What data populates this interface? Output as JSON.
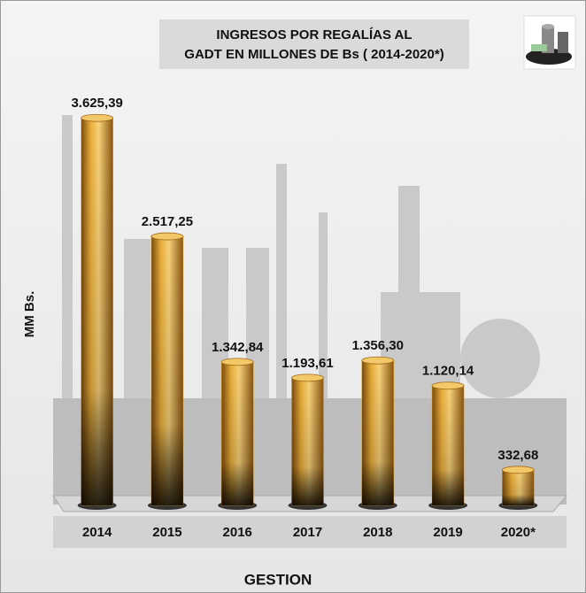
{
  "chart_data": {
    "type": "bar",
    "title": [
      "INGRESOS POR REGALÍAS AL",
      "GADT EN MILLONES DE Bs ( 2014-2020*)"
    ],
    "x_label": "GESTION",
    "y_label": "MM Bs.",
    "categories": [
      "2014",
      "2015",
      "2016",
      "2017",
      "2018",
      "2019",
      "2020*"
    ],
    "values": [
      3625.39,
      2517.25,
      1342.84,
      1193.61,
      1356.3,
      1120.14,
      332.68
    ],
    "value_labels": [
      "3.625,39",
      "2.517,25",
      "1.342,84",
      "1.193,61",
      "1.356,30",
      "1.120,14",
      "332,68"
    ],
    "color": "#e0a12a",
    "ylim": [
      0,
      4000
    ]
  }
}
